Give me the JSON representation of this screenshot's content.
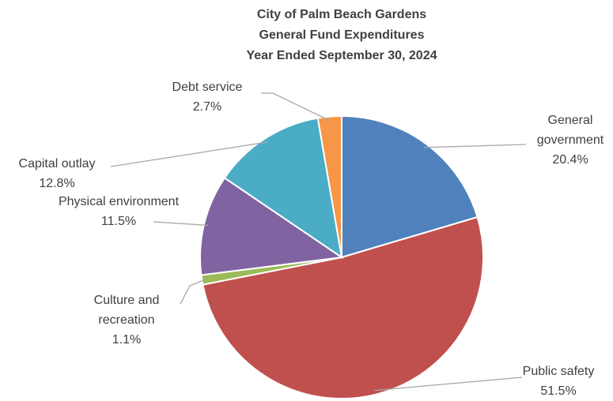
{
  "chart_data": {
    "type": "pie",
    "title": [
      "City of Palm Beach Gardens",
      "General Fund Expenditures",
      "Year Ended September 30, 2024"
    ],
    "categories": [
      "General government",
      "Public safety",
      "Culture and recreation",
      "Physical environment",
      "Capital outlay",
      "Debt service"
    ],
    "values": [
      20.4,
      51.5,
      1.1,
      11.5,
      12.8,
      2.7
    ],
    "value_labels": [
      "20.4%",
      "51.5%",
      "1.1%",
      "11.5%",
      "12.8%",
      "2.7%"
    ],
    "colors": [
      "#4f81bd",
      "#c0504d",
      "#9bbb59",
      "#8064a2",
      "#4bacc6",
      "#f79646"
    ]
  }
}
